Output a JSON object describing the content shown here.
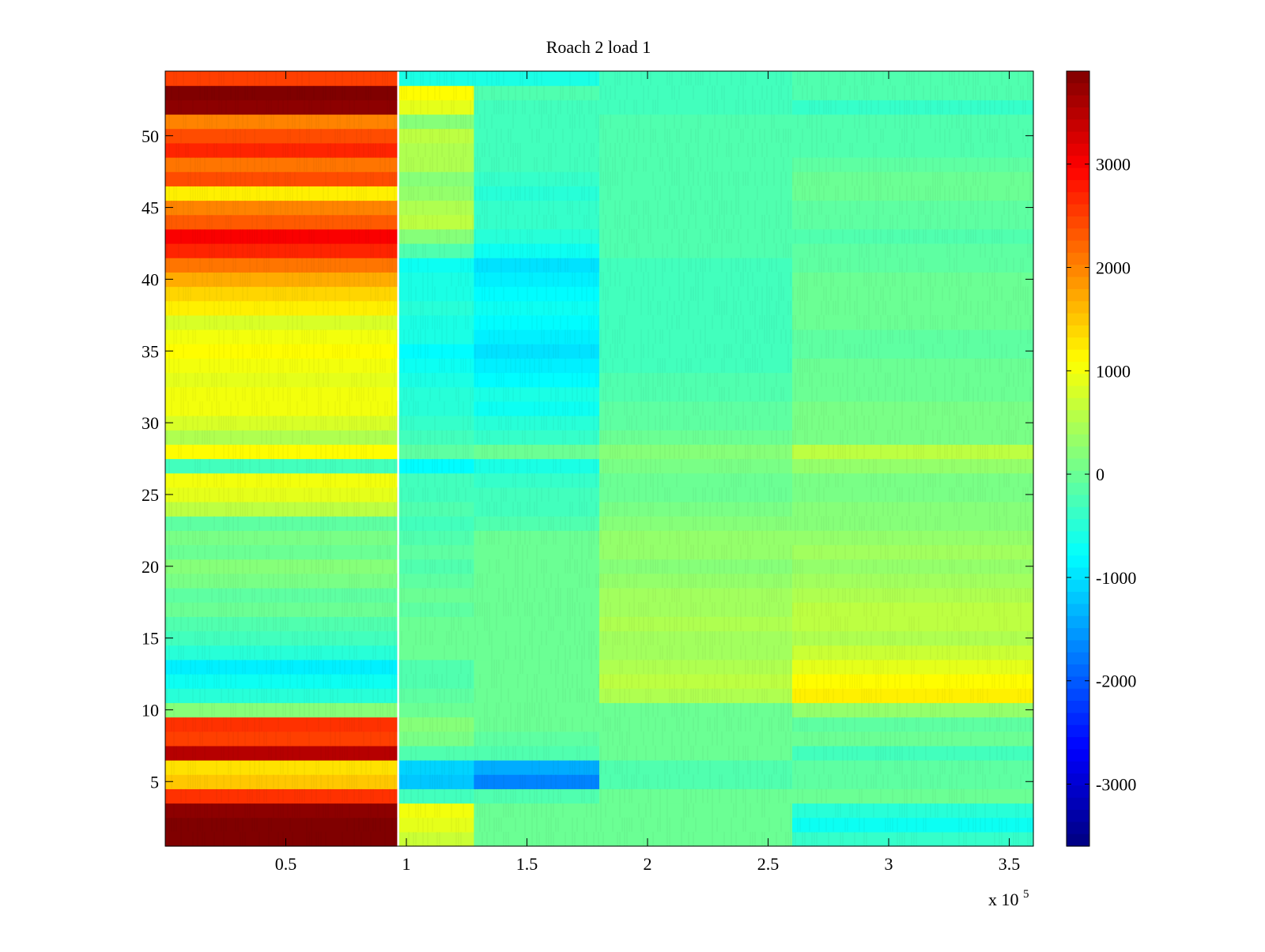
{
  "chart_data": {
    "type": "heatmap",
    "title": "Roach 2 load 1",
    "xlabel": "",
    "ylabel": "",
    "x_multiplier_label": {
      "base": "x 10",
      "exponent": "5"
    },
    "xlim": [
      0,
      3.6
    ],
    "ylim": [
      0.5,
      54.5
    ],
    "x_ticks": [
      {
        "value": 0.5,
        "label": "0.5"
      },
      {
        "value": 1,
        "label": "1"
      },
      {
        "value": 1.5,
        "label": "1.5"
      },
      {
        "value": 2,
        "label": "2"
      },
      {
        "value": 2.5,
        "label": "2.5"
      },
      {
        "value": 3,
        "label": "3"
      },
      {
        "value": 3.5,
        "label": "3.5"
      }
    ],
    "y_ticks": [
      {
        "value": 5,
        "label": "5"
      },
      {
        "value": 10,
        "label": "10"
      },
      {
        "value": 15,
        "label": "15"
      },
      {
        "value": 20,
        "label": "20"
      },
      {
        "value": 25,
        "label": "25"
      },
      {
        "value": 30,
        "label": "30"
      },
      {
        "value": 35,
        "label": "35"
      },
      {
        "value": 40,
        "label": "40"
      },
      {
        "value": 45,
        "label": "45"
      },
      {
        "value": 50,
        "label": "50"
      }
    ],
    "colorbar": {
      "colormap": "jet",
      "range": [
        -3600,
        3900
      ],
      "ticks": [
        {
          "value": 3000,
          "label": "3000"
        },
        {
          "value": 2000,
          "label": "2000"
        },
        {
          "value": 1000,
          "label": "1000"
        },
        {
          "value": 0,
          "label": "0"
        },
        {
          "value": -1000,
          "label": "-1000"
        },
        {
          "value": -2000,
          "label": "-2000"
        },
        {
          "value": -3000,
          "label": "-3000"
        }
      ]
    },
    "rows": 54,
    "x_segments": [
      {
        "x0": 0,
        "x1": 0.96
      },
      {
        "x0": 0.97,
        "x1": 1.28
      },
      {
        "x0": 1.28,
        "x1": 1.8
      },
      {
        "x0": 1.8,
        "x1": 2.6
      },
      {
        "x0": 2.6,
        "x1": 3.6
      }
    ],
    "values": [
      [
        3900,
        700,
        0,
        0,
        -400
      ],
      [
        3900,
        900,
        0,
        0,
        -700
      ],
      [
        3800,
        1000,
        0,
        0,
        -500
      ],
      [
        2600,
        -300,
        -200,
        0,
        0
      ],
      [
        1500,
        -1200,
        -1700,
        -200,
        -100
      ],
      [
        1300,
        -1100,
        -1400,
        -200,
        -100
      ],
      [
        3500,
        -200,
        -200,
        0,
        -300
      ],
      [
        2500,
        100,
        -100,
        0,
        0
      ],
      [
        2600,
        200,
        0,
        0,
        -100
      ],
      [
        200,
        0,
        0,
        0,
        300
      ],
      [
        -500,
        -100,
        0,
        500,
        1200
      ],
      [
        -700,
        -200,
        0,
        600,
        1100
      ],
      [
        -900,
        -200,
        0,
        500,
        900
      ],
      [
        -500,
        0,
        0,
        400,
        700
      ],
      [
        -300,
        0,
        0,
        400,
        500
      ],
      [
        -200,
        0,
        0,
        500,
        600
      ],
      [
        0,
        -100,
        0,
        400,
        600
      ],
      [
        -100,
        0,
        0,
        400,
        500
      ],
      [
        100,
        -100,
        0,
        300,
        400
      ],
      [
        200,
        -200,
        0,
        200,
        300
      ],
      [
        0,
        -100,
        0,
        300,
        400
      ],
      [
        100,
        -200,
        0,
        300,
        300
      ],
      [
        -100,
        -300,
        -200,
        200,
        200
      ],
      [
        600,
        -200,
        -300,
        100,
        200
      ],
      [
        900,
        -300,
        -300,
        0,
        100
      ],
      [
        1000,
        -300,
        -400,
        0,
        100
      ],
      [
        -300,
        -800,
        -600,
        100,
        300
      ],
      [
        1100,
        -100,
        0,
        200,
        600
      ],
      [
        500,
        -300,
        -400,
        0,
        100
      ],
      [
        800,
        -400,
        -500,
        -100,
        100
      ],
      [
        1000,
        -500,
        -700,
        -100,
        100
      ],
      [
        1000,
        -500,
        -600,
        -200,
        0
      ],
      [
        900,
        -600,
        -800,
        -200,
        0
      ],
      [
        1000,
        -700,
        -900,
        -300,
        0
      ],
      [
        1100,
        -800,
        -1000,
        -300,
        -100
      ],
      [
        1000,
        -600,
        -900,
        -300,
        -100
      ],
      [
        800,
        -600,
        -800,
        -300,
        0
      ],
      [
        1200,
        -500,
        -700,
        -300,
        0
      ],
      [
        1400,
        -600,
        -800,
        -300,
        0
      ],
      [
        1700,
        -600,
        -900,
        -300,
        0
      ],
      [
        2100,
        -700,
        -1000,
        -300,
        -100
      ],
      [
        2700,
        -200,
        -700,
        -200,
        -100
      ],
      [
        3000,
        200,
        -500,
        -200,
        -200
      ],
      [
        2300,
        600,
        -400,
        -200,
        -100
      ],
      [
        2000,
        500,
        -400,
        -200,
        -100
      ],
      [
        1200,
        300,
        -500,
        -200,
        0
      ],
      [
        2400,
        200,
        -400,
        -200,
        0
      ],
      [
        2100,
        500,
        -300,
        -200,
        -100
      ],
      [
        2700,
        500,
        -300,
        -200,
        -200
      ],
      [
        2400,
        600,
        -300,
        -200,
        -200
      ],
      [
        2000,
        200,
        -300,
        -200,
        -200
      ],
      [
        3800,
        900,
        -300,
        -300,
        -400
      ],
      [
        3900,
        1100,
        -200,
        -300,
        -200
      ],
      [
        2500,
        -600,
        -600,
        -300,
        -200
      ]
    ]
  }
}
